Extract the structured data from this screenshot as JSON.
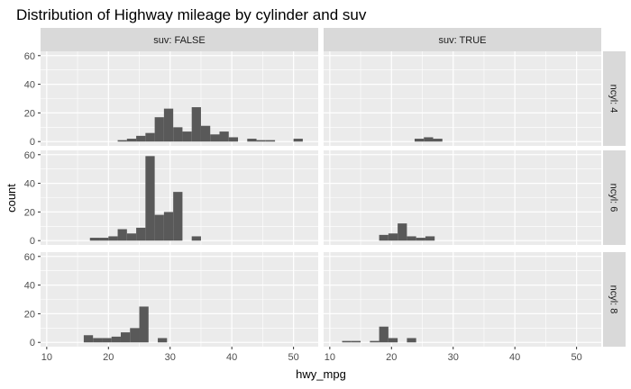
{
  "chart_data": {
    "type": "bar",
    "title": "Distribution of Highway mileage by cylinder and suv",
    "xlabel": "hwy_mpg",
    "ylabel": "count",
    "xlim": [
      9,
      54
    ],
    "ylim": [
      -3,
      63
    ],
    "x_ticks": [
      10,
      20,
      30,
      40,
      50
    ],
    "y_ticks": [
      0,
      20,
      40,
      60
    ],
    "bin_width": 1.5,
    "grid": true,
    "col_facets": [
      "suv: FALSE",
      "suv: TRUE"
    ],
    "row_facets": [
      "ncyl: 4",
      "ncyl: 6",
      "ncyl: 8"
    ],
    "color_bar": "#595959",
    "color_panel": "#ebebeb",
    "color_strip": "#d9d9d9",
    "panels": [
      {
        "row": 0,
        "col": 0,
        "bins": [
          [
            22.25,
            1
          ],
          [
            23.75,
            2
          ],
          [
            25.25,
            4
          ],
          [
            26.75,
            6
          ],
          [
            28.25,
            17
          ],
          [
            29.75,
            23
          ],
          [
            31.25,
            10
          ],
          [
            32.75,
            7
          ],
          [
            34.25,
            24
          ],
          [
            35.75,
            11
          ],
          [
            37.25,
            5
          ],
          [
            38.75,
            7
          ],
          [
            40.25,
            3
          ],
          [
            43.25,
            2
          ],
          [
            44.75,
            1
          ],
          [
            46.25,
            1
          ],
          [
            50.75,
            2
          ]
        ]
      },
      {
        "row": 0,
        "col": 1,
        "bins": [
          [
            24.5,
            2
          ],
          [
            26.0,
            3
          ],
          [
            27.5,
            2
          ]
        ]
      },
      {
        "row": 1,
        "col": 0,
        "bins": [
          [
            17.75,
            2
          ],
          [
            19.25,
            2
          ],
          [
            20.75,
            3
          ],
          [
            22.25,
            8
          ],
          [
            23.75,
            5
          ],
          [
            25.25,
            9
          ],
          [
            26.75,
            59
          ],
          [
            28.25,
            18
          ],
          [
            29.75,
            20
          ],
          [
            31.25,
            34
          ],
          [
            34.25,
            3
          ]
        ]
      },
      {
        "row": 1,
        "col": 1,
        "bins": [
          [
            18.75,
            4
          ],
          [
            20.25,
            5
          ],
          [
            21.75,
            12
          ],
          [
            23.25,
            3
          ],
          [
            24.75,
            2
          ],
          [
            26.25,
            3
          ]
        ]
      },
      {
        "row": 2,
        "col": 0,
        "bins": [
          [
            16.75,
            5
          ],
          [
            18.25,
            3
          ],
          [
            19.75,
            3
          ],
          [
            21.25,
            4
          ],
          [
            22.75,
            7
          ],
          [
            24.25,
            10
          ],
          [
            25.75,
            25
          ],
          [
            28.75,
            3
          ]
        ]
      },
      {
        "row": 2,
        "col": 1,
        "bins": [
          [
            12.75,
            1
          ],
          [
            14.25,
            1
          ],
          [
            17.25,
            1
          ],
          [
            18.75,
            11
          ],
          [
            20.25,
            3
          ],
          [
            23.25,
            3
          ]
        ]
      }
    ]
  }
}
